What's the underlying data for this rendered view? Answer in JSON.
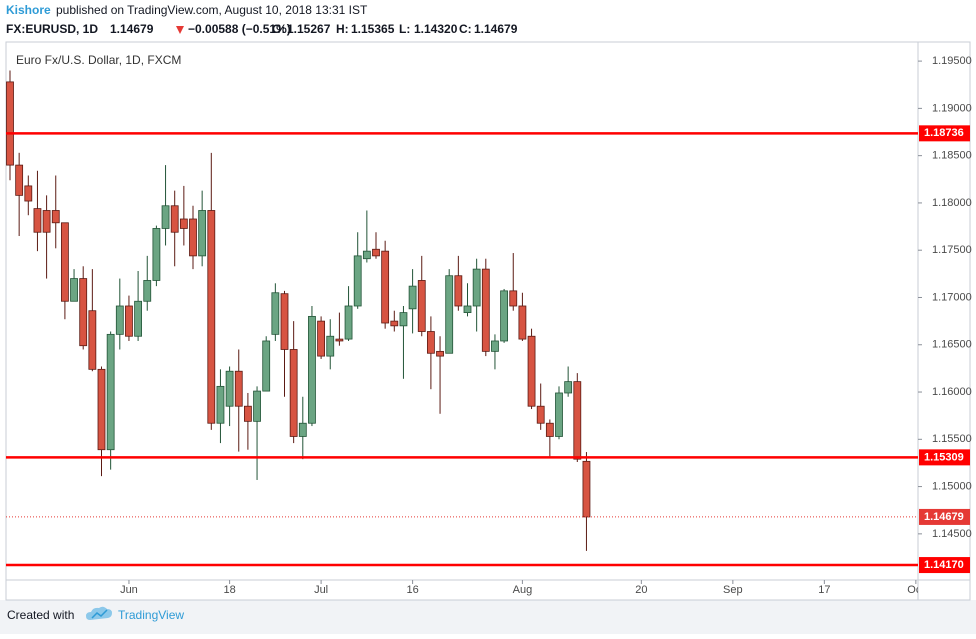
{
  "header": {
    "author": "Kishore",
    "published": "published on TradingView.com, August 10, 2018 13:31 IST",
    "symbol": "FX:EURUSD, 1D",
    "last": "1.14679",
    "change": "−0.00588 (−0.51%)",
    "ohlc": [
      [
        "O:",
        "1.15267"
      ],
      [
        "H:",
        "1.15365"
      ],
      [
        "L:",
        "1.14320"
      ],
      [
        "C:",
        "1.14679"
      ]
    ]
  },
  "footer": {
    "created": "Created with",
    "brand": "TradingView"
  },
  "chart_data": {
    "type": "candlestick",
    "title": "Euro Fx/U.S. Dollar, 1D, FXCM",
    "x": [
      "2018-05-15",
      "2018-05-16",
      "2018-05-17",
      "2018-05-18",
      "2018-05-21",
      "2018-05-22",
      "2018-05-23",
      "2018-05-24",
      "2018-05-25",
      "2018-05-28",
      "2018-05-29",
      "2018-05-30",
      "2018-05-31",
      "2018-06-01",
      "2018-06-04",
      "2018-06-05",
      "2018-06-06",
      "2018-06-07",
      "2018-06-08",
      "2018-06-11",
      "2018-06-12",
      "2018-06-13",
      "2018-06-14",
      "2018-06-15",
      "2018-06-18",
      "2018-06-19",
      "2018-06-20",
      "2018-06-21",
      "2018-06-22",
      "2018-06-25",
      "2018-06-26",
      "2018-06-27",
      "2018-06-28",
      "2018-06-29",
      "2018-07-02",
      "2018-07-03",
      "2018-07-04",
      "2018-07-05",
      "2018-07-06",
      "2018-07-09",
      "2018-07-10",
      "2018-07-11",
      "2018-07-12",
      "2018-07-13",
      "2018-07-16",
      "2018-07-17",
      "2018-07-18",
      "2018-07-19",
      "2018-07-20",
      "2018-07-23",
      "2018-07-24",
      "2018-07-25",
      "2018-07-26",
      "2018-07-27",
      "2018-07-30",
      "2018-07-31",
      "2018-08-01",
      "2018-08-02",
      "2018-08-03",
      "2018-08-06",
      "2018-08-07",
      "2018-08-08",
      "2018-08-09",
      "2018-08-10"
    ],
    "open": [
      1.1928,
      1.184,
      1.1818,
      1.1794,
      1.1792,
      1.1792,
      1.1779,
      1.1696,
      1.172,
      1.1686,
      1.1624,
      1.1539,
      1.1661,
      1.1691,
      1.1659,
      1.1696,
      1.1718,
      1.1773,
      1.1797,
      1.1783,
      1.1783,
      1.1744,
      1.1792,
      1.1567,
      1.1585,
      1.1622,
      1.1585,
      1.1569,
      1.1601,
      1.1661,
      1.1704,
      1.1645,
      1.1553,
      1.1567,
      1.1675,
      1.1638,
      1.1656,
      1.1656,
      1.1691,
      1.1741,
      1.1751,
      1.1749,
      1.1675,
      1.167,
      1.1688,
      1.1718,
      1.1664,
      1.1643,
      1.1641,
      1.1723,
      1.1684,
      1.1691,
      1.173,
      1.1643,
      1.1654,
      1.1707,
      1.1691,
      1.1659,
      1.1585,
      1.1567,
      1.1553,
      1.1599,
      1.1611,
      1.15267
    ],
    "high": [
      1.194,
      1.1853,
      1.1829,
      1.1834,
      1.1808,
      1.1829,
      1.1779,
      1.173,
      1.1733,
      1.173,
      1.1627,
      1.1664,
      1.172,
      1.1702,
      1.1728,
      1.1744,
      1.1776,
      1.184,
      1.1813,
      1.1818,
      1.1797,
      1.1813,
      1.1853,
      1.1624,
      1.1627,
      1.1645,
      1.1599,
      1.1606,
      1.1659,
      1.1715,
      1.1707,
      1.1675,
      1.1595,
      1.1691,
      1.168,
      1.1677,
      1.1684,
      1.1712,
      1.1769,
      1.1792,
      1.1769,
      1.176,
      1.1686,
      1.1691,
      1.173,
      1.1744,
      1.168,
      1.1659,
      1.173,
      1.1744,
      1.1715,
      1.1741,
      1.1741,
      1.1661,
      1.1709,
      1.1747,
      1.1705,
      1.1667,
      1.1609,
      1.1571,
      1.1606,
      1.1627,
      1.162,
      1.15365
    ],
    "low": [
      1.1824,
      1.1765,
      1.1787,
      1.1749,
      1.172,
      1.1752,
      1.1677,
      1.1696,
      1.1645,
      1.1622,
      1.1511,
      1.1518,
      1.1645,
      1.1654,
      1.1654,
      1.1686,
      1.1712,
      1.1755,
      1.1733,
      1.1755,
      1.173,
      1.1733,
      1.156,
      1.1546,
      1.1564,
      1.1537,
      1.1539,
      1.1507,
      1.1601,
      1.1654,
      1.1595,
      1.1546,
      1.1529,
      1.1564,
      1.1635,
      1.1624,
      1.1649,
      1.1654,
      1.1688,
      1.1737,
      1.1741,
      1.1667,
      1.1664,
      1.1614,
      1.1662,
      1.1659,
      1.1603,
      1.1577,
      1.1641,
      1.1686,
      1.168,
      1.1664,
      1.1638,
      1.1624,
      1.1652,
      1.1686,
      1.1654,
      1.1582,
      1.156,
      1.1532,
      1.155,
      1.1595,
      1.1526,
      1.1432
    ],
    "close": [
      1.184,
      1.1808,
      1.1802,
      1.1769,
      1.1769,
      1.1779,
      1.1696,
      1.172,
      1.1649,
      1.1624,
      1.1539,
      1.1661,
      1.1691,
      1.1659,
      1.1696,
      1.1718,
      1.1773,
      1.1797,
      1.1769,
      1.1773,
      1.1744,
      1.1792,
      1.1567,
      1.1606,
      1.1622,
      1.1585,
      1.1569,
      1.1601,
      1.1654,
      1.1705,
      1.1645,
      1.1553,
      1.1567,
      1.168,
      1.1638,
      1.1659,
      1.1654,
      1.1691,
      1.1744,
      1.1749,
      1.1744,
      1.1673,
      1.167,
      1.1684,
      1.1712,
      1.1664,
      1.1641,
      1.1638,
      1.1723,
      1.1691,
      1.1691,
      1.173,
      1.1643,
      1.1654,
      1.1707,
      1.1691,
      1.1656,
      1.1585,
      1.1567,
      1.1553,
      1.1599,
      1.1611,
      1.1529,
      1.14679
    ],
    "up_color": "#6ba583",
    "up_border": "#225437",
    "down_color": "#d75442",
    "down_border": "#5b1a13",
    "ylim": [
      1.14012,
      1.19702
    ],
    "yticks": [
      {
        "value": 1.145,
        "label": "1.14500"
      },
      {
        "value": 1.15,
        "label": "1.15000"
      },
      {
        "value": 1.155,
        "label": "1.15500"
      },
      {
        "value": 1.16,
        "label": "1.16000"
      },
      {
        "value": 1.165,
        "label": "1.16500"
      },
      {
        "value": 1.17,
        "label": "1.17000"
      },
      {
        "value": 1.175,
        "label": "1.17500"
      },
      {
        "value": 1.18,
        "label": "1.18000"
      },
      {
        "value": 1.185,
        "label": "1.18500"
      },
      {
        "value": 1.19,
        "label": "1.19000"
      },
      {
        "value": 1.195,
        "label": "1.19500"
      }
    ],
    "xticks": [
      {
        "value": "2018-06-01",
        "label": "Jun"
      },
      {
        "value": "2018-06-18",
        "label": "18"
      },
      {
        "value": "2018-07-02",
        "label": "Jul"
      },
      {
        "value": "2018-07-16",
        "label": "16"
      },
      {
        "value": "2018-08-01",
        "label": "Aug"
      },
      {
        "value": "2018-08-20",
        "label": "20"
      },
      {
        "value": "2018-09-03",
        "label": "Sep"
      },
      {
        "value": "2018-09-17",
        "label": "17"
      },
      {
        "value": "2018-10-01",
        "label": "Oct"
      }
    ],
    "levels": [
      {
        "value": 1.18736,
        "label": "1.18736"
      },
      {
        "value": 1.15309,
        "label": "1.15309"
      },
      {
        "value": 1.1417,
        "label": "1.14170"
      }
    ],
    "level_color": "#ff0000",
    "last_price_color": "#e53935",
    "grid": false
  }
}
